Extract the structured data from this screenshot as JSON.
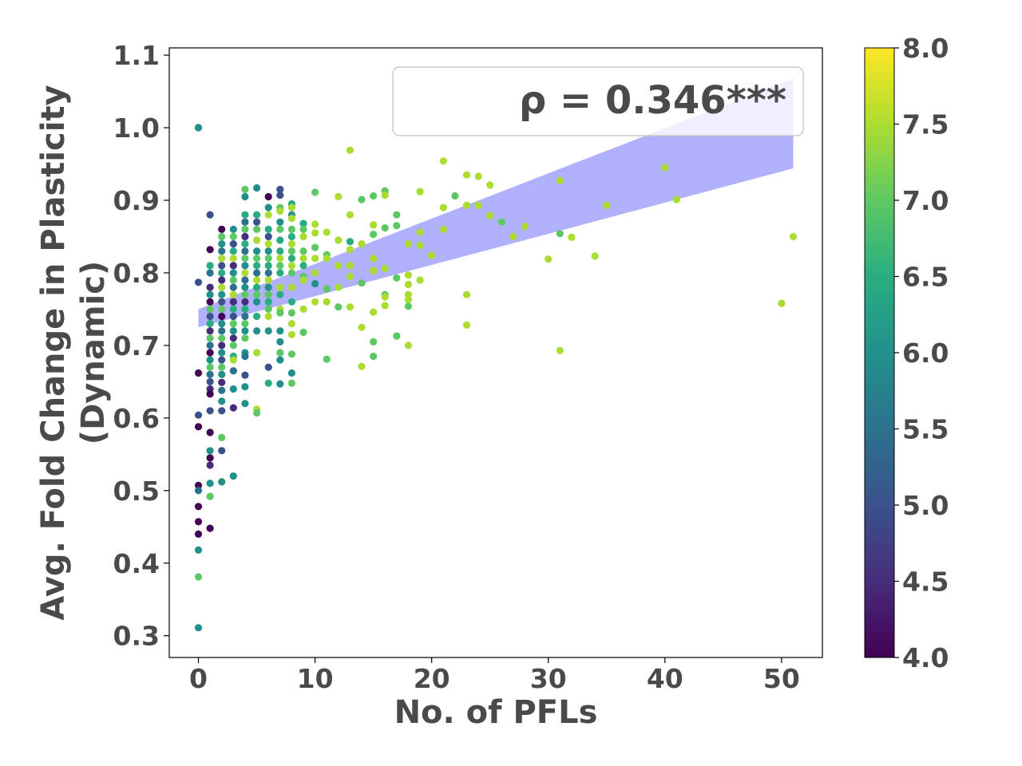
{
  "chart_data": {
    "type": "scatter",
    "title": "",
    "xlabel": "No. of PFLs",
    "ylabel_lines": [
      "Avg. Fold Change in Plasticity",
      "(Dynamic)"
    ],
    "xlim": [
      -2.5,
      53.5
    ],
    "ylim": [
      0.27,
      1.11
    ],
    "xticks": [
      0,
      10,
      20,
      30,
      40,
      50
    ],
    "xtick_labels": [
      "0",
      "10",
      "20",
      "30",
      "40",
      "50"
    ],
    "yticks": [
      0.3,
      0.4,
      0.5,
      0.6,
      0.7,
      0.8,
      0.9,
      1.0,
      1.1
    ],
    "ytick_labels": [
      "0.3",
      "0.4",
      "0.5",
      "0.6",
      "0.7",
      "0.8",
      "0.9",
      "1.0",
      "1.1"
    ],
    "grid": false,
    "annotation": "ρ = 0.346***",
    "regression": {
      "x": [
        0,
        51
      ],
      "line_y": [
        0.737,
        1.006
      ],
      "ci_lower": [
        0.725,
        0.944
      ],
      "ci_upper": [
        0.75,
        1.068
      ],
      "color": "#b0b0fc"
    },
    "colorbar": {
      "colormap": "viridis",
      "range": [
        4.0,
        8.0
      ],
      "ticks": [
        4.0,
        4.5,
        5.0,
        5.5,
        6.0,
        6.5,
        7.0,
        7.5,
        8.0
      ],
      "tick_labels": [
        "4.0",
        "4.5",
        "5.0",
        "5.5",
        "6.0",
        "6.5",
        "7.0",
        "7.5",
        "8.0"
      ]
    },
    "points": [
      [
        0,
        1.0,
        6.0
      ],
      [
        0,
        1.0,
        6.0
      ],
      [
        0,
        0.787,
        5.0
      ],
      [
        0,
        0.662,
        4.0
      ],
      [
        0,
        0.604,
        5.0
      ],
      [
        0,
        0.588,
        4.0
      ],
      [
        0,
        0.507,
        4.0
      ],
      [
        0,
        0.5,
        5.5
      ],
      [
        0,
        0.478,
        4.0
      ],
      [
        0,
        0.457,
        4.0
      ],
      [
        0,
        0.44,
        4.0
      ],
      [
        0,
        0.418,
        6.0
      ],
      [
        0,
        0.381,
        7.0
      ],
      [
        0,
        0.311,
        6.0
      ],
      [
        1,
        0.88,
        5.0
      ],
      [
        1,
        0.832,
        4.0
      ],
      [
        1,
        0.81,
        6.5
      ],
      [
        1,
        0.8,
        5.5
      ],
      [
        1,
        0.78,
        4.5
      ],
      [
        1,
        0.77,
        6.0
      ],
      [
        1,
        0.76,
        4.0
      ],
      [
        1,
        0.75,
        7.0
      ],
      [
        1,
        0.74,
        5.0
      ],
      [
        1,
        0.73,
        6.5
      ],
      [
        1,
        0.72,
        4.5
      ],
      [
        1,
        0.71,
        7.0
      ],
      [
        1,
        0.7,
        5.5
      ],
      [
        1,
        0.69,
        4.0
      ],
      [
        1,
        0.68,
        6.0
      ],
      [
        1,
        0.67,
        7.0
      ],
      [
        1,
        0.66,
        5.5
      ],
      [
        1,
        0.65,
        5.0
      ],
      [
        1,
        0.64,
        4.5
      ],
      [
        1,
        0.633,
        4.0
      ],
      [
        1,
        0.61,
        5.0
      ],
      [
        1,
        0.58,
        4.0
      ],
      [
        1,
        0.555,
        6.0
      ],
      [
        1,
        0.545,
        4.0
      ],
      [
        1,
        0.535,
        4.5
      ],
      [
        1,
        0.51,
        6.0
      ],
      [
        1,
        0.492,
        7.0
      ],
      [
        1,
        0.448,
        4.0
      ],
      [
        2,
        0.86,
        4.0
      ],
      [
        2,
        0.85,
        7.0
      ],
      [
        2,
        0.84,
        6.0
      ],
      [
        2,
        0.83,
        5.5
      ],
      [
        2,
        0.82,
        7.5
      ],
      [
        2,
        0.81,
        5.0
      ],
      [
        2,
        0.8,
        6.5
      ],
      [
        2,
        0.79,
        4.5
      ],
      [
        2,
        0.78,
        7.5
      ],
      [
        2,
        0.77,
        6.0
      ],
      [
        2,
        0.76,
        5.0
      ],
      [
        2,
        0.75,
        7.0
      ],
      [
        2,
        0.74,
        4.0
      ],
      [
        2,
        0.73,
        6.0
      ],
      [
        2,
        0.72,
        5.5
      ],
      [
        2,
        0.71,
        7.0
      ],
      [
        2,
        0.7,
        4.5
      ],
      [
        2,
        0.69,
        6.0
      ],
      [
        2,
        0.68,
        5.0
      ],
      [
        2,
        0.67,
        7.0
      ],
      [
        2,
        0.66,
        6.0
      ],
      [
        2,
        0.649,
        4.5
      ],
      [
        2,
        0.638,
        5.5
      ],
      [
        2,
        0.623,
        6.0
      ],
      [
        2,
        0.61,
        5.0
      ],
      [
        2,
        0.573,
        7.0
      ],
      [
        2,
        0.555,
        5.0
      ],
      [
        2,
        0.512,
        7.5
      ],
      [
        2,
        0.512,
        6.0
      ],
      [
        3,
        0.86,
        6.0
      ],
      [
        3,
        0.85,
        7.0
      ],
      [
        3,
        0.84,
        5.0
      ],
      [
        3,
        0.83,
        6.5
      ],
      [
        3,
        0.82,
        7.5
      ],
      [
        3,
        0.81,
        4.5
      ],
      [
        3,
        0.8,
        6.0
      ],
      [
        3,
        0.79,
        7.0
      ],
      [
        3,
        0.78,
        5.5
      ],
      [
        3,
        0.77,
        7.5
      ],
      [
        3,
        0.76,
        4.5
      ],
      [
        3,
        0.75,
        6.5
      ],
      [
        3,
        0.74,
        5.0
      ],
      [
        3,
        0.73,
        7.0
      ],
      [
        3,
        0.72,
        6.0
      ],
      [
        3,
        0.71,
        4.5
      ],
      [
        3,
        0.7,
        7.0
      ],
      [
        3,
        0.685,
        6.5
      ],
      [
        3,
        0.68,
        7.5
      ],
      [
        3,
        0.665,
        5.5
      ],
      [
        3,
        0.64,
        6.0
      ],
      [
        3,
        0.614,
        4.5
      ],
      [
        3,
        0.52,
        6.0
      ],
      [
        4,
        0.915,
        7.0
      ],
      [
        4,
        0.905,
        6.0
      ],
      [
        4,
        0.88,
        6.5
      ],
      [
        4,
        0.87,
        5.5
      ],
      [
        4,
        0.86,
        7.0
      ],
      [
        4,
        0.85,
        4.5
      ],
      [
        4,
        0.84,
        6.5
      ],
      [
        4,
        0.83,
        5.5
      ],
      [
        4,
        0.82,
        7.0
      ],
      [
        4,
        0.81,
        6.0
      ],
      [
        4,
        0.8,
        7.5
      ],
      [
        4,
        0.79,
        5.5
      ],
      [
        4,
        0.78,
        6.0
      ],
      [
        4,
        0.77,
        7.0
      ],
      [
        4,
        0.76,
        4.5
      ],
      [
        4,
        0.75,
        6.5
      ],
      [
        4,
        0.74,
        5.5
      ],
      [
        4,
        0.73,
        7.0
      ],
      [
        4,
        0.72,
        6.0
      ],
      [
        4,
        0.71,
        7.0
      ],
      [
        4,
        0.69,
        6.0
      ],
      [
        4,
        0.685,
        5.5
      ],
      [
        4,
        0.659,
        5.0
      ],
      [
        4,
        0.643,
        6.0
      ],
      [
        4,
        0.62,
        6.0
      ],
      [
        5,
        0.917,
        6.0
      ],
      [
        5,
        0.88,
        6.5
      ],
      [
        5,
        0.87,
        5.0
      ],
      [
        5,
        0.86,
        7.0
      ],
      [
        5,
        0.845,
        7.5
      ],
      [
        5,
        0.83,
        6.0
      ],
      [
        5,
        0.82,
        7.0
      ],
      [
        5,
        0.81,
        6.5
      ],
      [
        5,
        0.8,
        5.5
      ],
      [
        5,
        0.79,
        7.5
      ],
      [
        5,
        0.78,
        6.5
      ],
      [
        5,
        0.77,
        7.0
      ],
      [
        5,
        0.76,
        6.0
      ],
      [
        5,
        0.74,
        6.5
      ],
      [
        5,
        0.72,
        6.0
      ],
      [
        5,
        0.69,
        7.5
      ],
      [
        5,
        0.612,
        7.5
      ],
      [
        5,
        0.607,
        7.0
      ],
      [
        6,
        0.905,
        4.0
      ],
      [
        6,
        0.89,
        6.0
      ],
      [
        6,
        0.88,
        7.5
      ],
      [
        6,
        0.86,
        6.5
      ],
      [
        6,
        0.85,
        5.0
      ],
      [
        6,
        0.84,
        7.5
      ],
      [
        6,
        0.83,
        6.0
      ],
      [
        6,
        0.82,
        7.0
      ],
      [
        6,
        0.81,
        6.5
      ],
      [
        6,
        0.8,
        5.5
      ],
      [
        6,
        0.79,
        7.5
      ],
      [
        6,
        0.78,
        6.0
      ],
      [
        6,
        0.77,
        7.0
      ],
      [
        6,
        0.76,
        6.5
      ],
      [
        6,
        0.75,
        7.0
      ],
      [
        6,
        0.74,
        7.5
      ],
      [
        6,
        0.72,
        6.0
      ],
      [
        6,
        0.67,
        5.0
      ],
      [
        6,
        0.648,
        6.5
      ],
      [
        7,
        0.915,
        5.0
      ],
      [
        7,
        0.907,
        5.0
      ],
      [
        7,
        0.89,
        7.0
      ],
      [
        7,
        0.885,
        7.5
      ],
      [
        7,
        0.87,
        6.0
      ],
      [
        7,
        0.86,
        7.0
      ],
      [
        7,
        0.845,
        6.5
      ],
      [
        7,
        0.83,
        6.5
      ],
      [
        7,
        0.82,
        7.5
      ],
      [
        7,
        0.81,
        7.0
      ],
      [
        7,
        0.8,
        6.5
      ],
      [
        7,
        0.78,
        7.5
      ],
      [
        7,
        0.77,
        6.5
      ],
      [
        7,
        0.75,
        7.5
      ],
      [
        7,
        0.745,
        7.0
      ],
      [
        7,
        0.72,
        6.0
      ],
      [
        7,
        0.705,
        6.0
      ],
      [
        7,
        0.69,
        7.0
      ],
      [
        7,
        0.68,
        6.0
      ],
      [
        7,
        0.647,
        6.0
      ],
      [
        8,
        0.895,
        6.5
      ],
      [
        8,
        0.89,
        7.5
      ],
      [
        8,
        0.88,
        6.0
      ],
      [
        8,
        0.875,
        7.5
      ],
      [
        8,
        0.86,
        7.0
      ],
      [
        8,
        0.85,
        6.5
      ],
      [
        8,
        0.84,
        7.5
      ],
      [
        8,
        0.83,
        7.0
      ],
      [
        8,
        0.82,
        6.5
      ],
      [
        8,
        0.81,
        7.5
      ],
      [
        8,
        0.8,
        7.0
      ],
      [
        8,
        0.78,
        7.5
      ],
      [
        8,
        0.76,
        6.5
      ],
      [
        8,
        0.745,
        7.0
      ],
      [
        8,
        0.73,
        7.5
      ],
      [
        8,
        0.715,
        7.5
      ],
      [
        8,
        0.688,
        7.0
      ],
      [
        8,
        0.662,
        6.0
      ],
      [
        8,
        0.648,
        7.0
      ],
      [
        9,
        0.868,
        6.5
      ],
      [
        9,
        0.86,
        7.0
      ],
      [
        9,
        0.85,
        7.5
      ],
      [
        9,
        0.83,
        7.0
      ],
      [
        9,
        0.82,
        7.5
      ],
      [
        9,
        0.81,
        6.5
      ],
      [
        9,
        0.795,
        7.0
      ],
      [
        9,
        0.79,
        7.5
      ],
      [
        9,
        0.75,
        7.5
      ],
      [
        9,
        0.718,
        7.0
      ],
      [
        10,
        0.911,
        7.0
      ],
      [
        10,
        0.867,
        7.5
      ],
      [
        10,
        0.855,
        7.5
      ],
      [
        10,
        0.835,
        7.0
      ],
      [
        10,
        0.82,
        7.5
      ],
      [
        10,
        0.8,
        7.5
      ],
      [
        10,
        0.785,
        6.0
      ],
      [
        10,
        0.76,
        7.5
      ],
      [
        11,
        0.856,
        7.5
      ],
      [
        11,
        0.825,
        7.0
      ],
      [
        11,
        0.82,
        7.5
      ],
      [
        11,
        0.778,
        7.0
      ],
      [
        11,
        0.76,
        7.5
      ],
      [
        11,
        0.681,
        7.0
      ],
      [
        12,
        0.905,
        7.5
      ],
      [
        12,
        0.845,
        7.5
      ],
      [
        12,
        0.81,
        7.5
      ],
      [
        12,
        0.78,
        7.5
      ],
      [
        12,
        0.753,
        7.0
      ],
      [
        13,
        0.969,
        7.5
      ],
      [
        13,
        0.88,
        7.5
      ],
      [
        13,
        0.843,
        6.5
      ],
      [
        13,
        0.832,
        7.5
      ],
      [
        13,
        0.81,
        7.5
      ],
      [
        13,
        0.795,
        7.5
      ],
      [
        13,
        0.753,
        7.5
      ],
      [
        14,
        0.901,
        7.0
      ],
      [
        14,
        0.84,
        7.5
      ],
      [
        14,
        0.786,
        7.0
      ],
      [
        14,
        0.725,
        7.5
      ],
      [
        14,
        0.671,
        7.5
      ],
      [
        15,
        0.906,
        7.0
      ],
      [
        15,
        0.866,
        7.5
      ],
      [
        15,
        0.853,
        7.0
      ],
      [
        15,
        0.82,
        7.5
      ],
      [
        15,
        0.803,
        7.5
      ],
      [
        15,
        0.746,
        7.5
      ],
      [
        15,
        0.705,
        7.0
      ],
      [
        15,
        0.685,
        7.0
      ],
      [
        16,
        0.913,
        7.0
      ],
      [
        16,
        0.907,
        7.5
      ],
      [
        16,
        0.862,
        7.0
      ],
      [
        16,
        0.806,
        7.5
      ],
      [
        16,
        0.77,
        7.0
      ],
      [
        16,
        0.767,
        7.5
      ],
      [
        16,
        0.755,
        7.5
      ],
      [
        17,
        0.88,
        7.0
      ],
      [
        17,
        0.865,
        7.0
      ],
      [
        17,
        0.793,
        7.0
      ],
      [
        17,
        0.713,
        7.0
      ],
      [
        18,
        0.84,
        7.5
      ],
      [
        18,
        0.797,
        7.5
      ],
      [
        18,
        0.784,
        7.5
      ],
      [
        18,
        0.77,
        7.5
      ],
      [
        18,
        0.763,
        7.5
      ],
      [
        18,
        0.754,
        7.0
      ],
      [
        18,
        0.7,
        7.5
      ],
      [
        19,
        0.912,
        7.5
      ],
      [
        19,
        0.856,
        7.5
      ],
      [
        19,
        0.838,
        7.5
      ],
      [
        19,
        0.79,
        7.5
      ],
      [
        20,
        0.824,
        7.5
      ],
      [
        21,
        0.954,
        7.5
      ],
      [
        21,
        0.89,
        7.5
      ],
      [
        21,
        0.86,
        7.5
      ],
      [
        22,
        0.906,
        7.0
      ],
      [
        23,
        0.935,
        7.5
      ],
      [
        23,
        0.893,
        7.5
      ],
      [
        23,
        0.77,
        7.5
      ],
      [
        23,
        0.728,
        7.5
      ],
      [
        24,
        0.933,
        7.5
      ],
      [
        24,
        0.893,
        7.5
      ],
      [
        25,
        0.921,
        7.5
      ],
      [
        25,
        0.879,
        7.5
      ],
      [
        26,
        0.87,
        7.0
      ],
      [
        27,
        0.85,
        7.5
      ],
      [
        28,
        0.864,
        7.5
      ],
      [
        30,
        0.819,
        7.5
      ],
      [
        31,
        0.927,
        7.5
      ],
      [
        31,
        0.854,
        7.0
      ],
      [
        31,
        0.693,
        7.5
      ],
      [
        32,
        0.849,
        7.5
      ],
      [
        34,
        0.823,
        7.5
      ],
      [
        35,
        0.893,
        7.5
      ],
      [
        40,
        0.945,
        7.5
      ],
      [
        41,
        0.901,
        7.5
      ],
      [
        50,
        0.758,
        7.5
      ],
      [
        51,
        0.85,
        7.5
      ]
    ]
  }
}
